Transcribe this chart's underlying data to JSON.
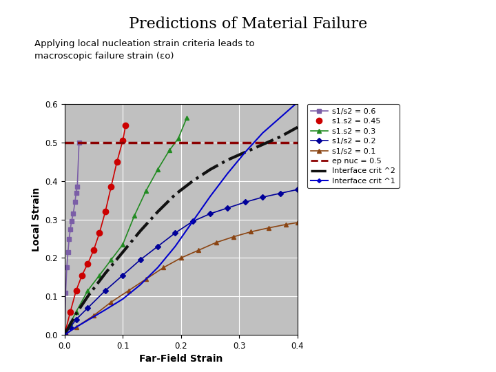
{
  "title": "Predictions of Material Failure",
  "subtitle_line1": "Applying local nucleation strain criteria leads to",
  "subtitle_line2": "macroscopic failure strain (εᴏ)",
  "xlabel": "Far-Field Strain",
  "ylabel": "Local Strain",
  "xlim": [
    0.0,
    0.4
  ],
  "ylim": [
    0.0,
    0.6
  ],
  "xticks": [
    0.0,
    0.1,
    0.2,
    0.3,
    0.4
  ],
  "yticks": [
    0.0,
    0.1,
    0.2,
    0.3,
    0.4,
    0.5,
    0.6
  ],
  "bg_color": "#c0c0c0",
  "fig_color": "#ffffff",
  "title_color": "#000000",
  "rule_color": "#000080",
  "series": {
    "s06": {
      "label": "s1/s2 = 0.6",
      "color": "#7B5EA7",
      "marker": "s",
      "markersize": 5,
      "linestyle": "-",
      "linewidth": 1.2,
      "x": [
        0.0,
        0.002,
        0.004,
        0.006,
        0.008,
        0.01,
        0.012,
        0.015,
        0.018,
        0.02,
        0.022,
        0.025
      ],
      "y": [
        0.0,
        0.11,
        0.175,
        0.215,
        0.25,
        0.275,
        0.295,
        0.315,
        0.345,
        0.37,
        0.385,
        0.5
      ]
    },
    "s045": {
      "label": "s1.s2 = 0.45",
      "color": "#cc0000",
      "marker": "o",
      "markersize": 6,
      "linestyle": "-",
      "linewidth": 1.2,
      "x": [
        0.0,
        0.01,
        0.02,
        0.03,
        0.04,
        0.05,
        0.06,
        0.07,
        0.08,
        0.09,
        0.1,
        0.105
      ],
      "y": [
        0.0,
        0.06,
        0.115,
        0.155,
        0.185,
        0.22,
        0.265,
        0.32,
        0.385,
        0.45,
        0.505,
        0.545
      ]
    },
    "s03": {
      "label": "s1.s2 = 0.3",
      "color": "#228B22",
      "marker": "^",
      "markersize": 5,
      "linestyle": "-",
      "linewidth": 1.2,
      "x": [
        0.0,
        0.01,
        0.02,
        0.04,
        0.06,
        0.08,
        0.1,
        0.12,
        0.14,
        0.16,
        0.18,
        0.195,
        0.21
      ],
      "y": [
        0.0,
        0.03,
        0.06,
        0.115,
        0.155,
        0.195,
        0.235,
        0.31,
        0.375,
        0.43,
        0.48,
        0.51,
        0.565
      ]
    },
    "s02": {
      "label": "s1/s2 = 0.2",
      "color": "#000099",
      "marker": "D",
      "markersize": 4,
      "linestyle": "-",
      "linewidth": 1.2,
      "x": [
        0.0,
        0.01,
        0.02,
        0.04,
        0.07,
        0.1,
        0.13,
        0.16,
        0.19,
        0.22,
        0.25,
        0.28,
        0.31,
        0.34,
        0.37,
        0.4
      ],
      "y": [
        0.0,
        0.02,
        0.04,
        0.07,
        0.115,
        0.155,
        0.195,
        0.23,
        0.265,
        0.295,
        0.315,
        0.33,
        0.345,
        0.358,
        0.368,
        0.378
      ]
    },
    "s01": {
      "label": "s1/s2 = 0.1",
      "color": "#8B4513",
      "marker": "^",
      "markersize": 4,
      "linestyle": "-",
      "linewidth": 1.2,
      "x": [
        0.0,
        0.02,
        0.05,
        0.08,
        0.11,
        0.14,
        0.17,
        0.2,
        0.23,
        0.26,
        0.29,
        0.32,
        0.35,
        0.38,
        0.4
      ],
      "y": [
        0.0,
        0.02,
        0.05,
        0.085,
        0.115,
        0.145,
        0.175,
        0.2,
        0.22,
        0.24,
        0.255,
        0.268,
        0.278,
        0.287,
        0.292
      ]
    },
    "ep_nuc": {
      "label": "ep nuc = 0.5",
      "color": "#8B0000",
      "linestyle": "--",
      "linewidth": 2.5,
      "x": [
        0.0,
        0.4
      ],
      "y": [
        0.5,
        0.5
      ]
    },
    "iface2": {
      "label": "Interface crit ^2",
      "color": "#111111",
      "linestyle": "-.",
      "linewidth": 3.0,
      "x": [
        0.0,
        0.02,
        0.04,
        0.07,
        0.1,
        0.13,
        0.16,
        0.19,
        0.22,
        0.25,
        0.28,
        0.31,
        0.34,
        0.37,
        0.4
      ],
      "y": [
        0.0,
        0.055,
        0.1,
        0.16,
        0.215,
        0.27,
        0.32,
        0.365,
        0.4,
        0.43,
        0.455,
        0.475,
        0.495,
        0.515,
        0.54
      ]
    },
    "iface1": {
      "label": "Interface crit ^1",
      "color": "#0000cc",
      "linestyle": "-",
      "linewidth": 1.5,
      "x": [
        0.0,
        0.02,
        0.04,
        0.07,
        0.1,
        0.13,
        0.16,
        0.19,
        0.22,
        0.25,
        0.28,
        0.31,
        0.34,
        0.37,
        0.4
      ],
      "y": [
        0.0,
        0.02,
        0.038,
        0.065,
        0.093,
        0.13,
        0.175,
        0.23,
        0.295,
        0.36,
        0.42,
        0.475,
        0.525,
        0.565,
        0.605
      ]
    }
  },
  "legend_labels": [
    "s1/s2 = 0.6",
    "s1.s2 = 0.45",
    "s1.s2 = 0.3",
    "s1/s2 = 0.2",
    "s1/s2 = 0.1",
    "ep nuc = 0.5",
    "Interface crit ^2",
    "Interface crit ^1"
  ]
}
